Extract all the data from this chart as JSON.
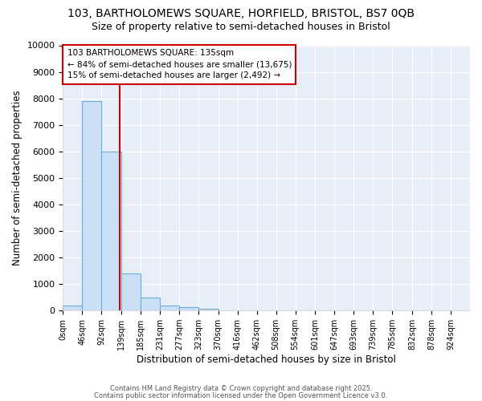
{
  "title_line1": "103, BARTHOLOMEWS SQUARE, HORFIELD, BRISTOL, BS7 0QB",
  "title_line2": "Size of property relative to semi-detached houses in Bristol",
  "xlabel": "Distribution of semi-detached houses by size in Bristol",
  "ylabel": "Number of semi-detached properties",
  "bin_edges": [
    0,
    46,
    92,
    139,
    185,
    231,
    277,
    323,
    370,
    416,
    462,
    508,
    554,
    601,
    647,
    693,
    739,
    785,
    832,
    878,
    924,
    970
  ],
  "bin_heights": [
    200,
    7900,
    6000,
    1400,
    500,
    200,
    130,
    80,
    0,
    0,
    0,
    0,
    0,
    0,
    0,
    0,
    0,
    0,
    0,
    0,
    0
  ],
  "bar_color": "#cce0f5",
  "bar_edge_color": "#6aaed6",
  "property_size": 135,
  "vline_color": "#cc0000",
  "annotation_line1": "103 BARTHOLOMEWS SQUARE: 135sqm",
  "annotation_line2": "← 84% of semi-detached houses are smaller (13,675)",
  "annotation_line3": "15% of semi-detached houses are larger (2,492) →",
  "annotation_box_color": "#ffffff",
  "annotation_box_edge_color": "#cc0000",
  "ylim": [
    0,
    10000
  ],
  "yticks": [
    0,
    1000,
    2000,
    3000,
    4000,
    5000,
    6000,
    7000,
    8000,
    9000,
    10000
  ],
  "background_color": "#ffffff",
  "plot_bg_color": "#e8eef8",
  "grid_color": "#ffffff",
  "footer_line1": "Contains HM Land Registry data © Crown copyright and database right 2025.",
  "footer_line2": "Contains public sector information licensed under the Open Government Licence v3.0."
}
